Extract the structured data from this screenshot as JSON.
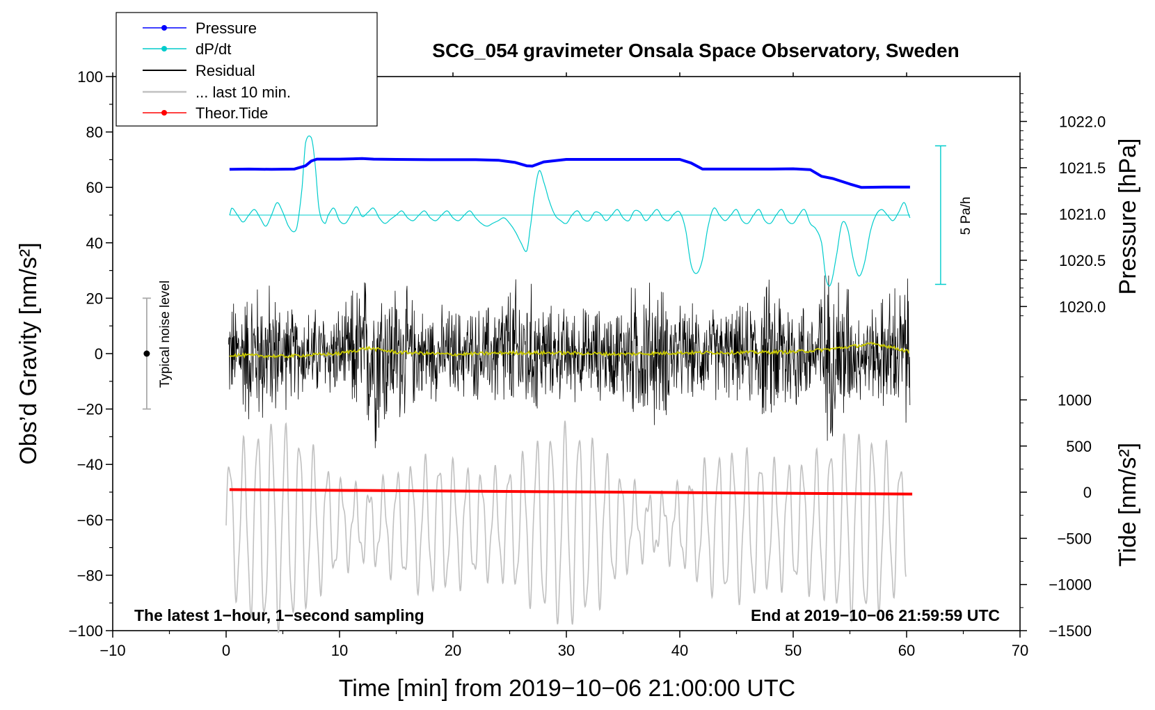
{
  "chart_data": {
    "type": "line",
    "title": "SCG_054 gravimeter Onsala Space Observatory, Sweden",
    "xlabel": "Time [min] from 2019−10−06 21:00:00 UTC",
    "ylabel_left": "Obs’d Gravity [nm/s²]",
    "ylabel_right_top": "Pressure [hPa]",
    "ylabel_right_bottom": "Tide [nm/s²]",
    "xlim": [
      -10,
      70
    ],
    "ylim": [
      -100,
      100
    ],
    "x_ticks": [
      -10,
      0,
      10,
      20,
      30,
      40,
      50,
      60,
      70
    ],
    "x_tick_labels": [
      "−10",
      "0",
      "10",
      "20",
      "30",
      "40",
      "50",
      "60",
      "70"
    ],
    "y_ticks": [
      -100,
      -80,
      -60,
      -40,
      -20,
      0,
      20,
      40,
      60,
      80,
      100
    ],
    "y_tick_labels": [
      "−100",
      "−80",
      "−60",
      "−40",
      "−20",
      "0",
      "20",
      "40",
      "60",
      "80",
      "100"
    ],
    "pressure_axis": {
      "ticks": [
        1020.0,
        1020.5,
        1021.0,
        1021.5,
        1022.0
      ],
      "tick_labels": [
        "1020.0",
        "1020.5",
        "1021.0",
        "1021.5",
        "1022.0"
      ],
      "map": {
        "value_a": 1020.0,
        "grav_a": 17,
        "value_b": 1022.0,
        "grav_b": 83.8
      }
    },
    "tide_axis": {
      "ticks": [
        -1500,
        -1000,
        -500,
        0,
        500,
        1000
      ],
      "tick_labels": [
        "−1500",
        "−1000",
        "−500",
        "0",
        "500",
        "1000"
      ],
      "map": {
        "value_a": -1500,
        "grav_a": -100,
        "value_b": 1000,
        "grav_b": -16.7
      }
    },
    "legend": {
      "position": "top-left",
      "entries": [
        {
          "label": "Pressure",
          "color": "#0000ff",
          "style": "line-dot"
        },
        {
          "label": "dP/dt",
          "color": "#00cccc",
          "style": "line-dot"
        },
        {
          "label": "Residual",
          "color": "#000000",
          "style": "line"
        },
        {
          "label": "... last 10 min.",
          "color": "#c0c0c0",
          "style": "line"
        },
        {
          "label": "Theor.Tide",
          "color": "#ff0000",
          "style": "line-dot"
        }
      ]
    },
    "annotations": {
      "noise_label": "Typical noise level",
      "noise_bar": {
        "x": -7,
        "center": 0,
        "low": -20,
        "high": 20
      },
      "rate_label": "5 Pa/h",
      "rate_bar": {
        "x": 63,
        "low": 25,
        "high": 75
      },
      "note_left": "The latest 1−hour, 1−second sampling",
      "note_right": "End at 2019−10−06 21:59:59 UTC"
    },
    "series": [
      {
        "name": "Pressure",
        "color": "#0000ff",
        "unit": "gravity-axis equivalent",
        "x": [
          0.3,
          2,
          4,
          6,
          7,
          7.5,
          8,
          10,
          12,
          13,
          15,
          18,
          20,
          22,
          24,
          25.5,
          26.5,
          27,
          28,
          30,
          32,
          35,
          38,
          40,
          41,
          42,
          45,
          48,
          50,
          51.5,
          52.5,
          53.5,
          55,
          56,
          58,
          60.3
        ],
        "values": [
          66.5,
          66.6,
          66.5,
          66.6,
          67.8,
          69.5,
          70.2,
          70.2,
          70.4,
          70.2,
          70.1,
          70.0,
          70.0,
          70.0,
          69.8,
          69.0,
          67.8,
          67.7,
          69.2,
          70.1,
          70.1,
          70.1,
          70.1,
          70.1,
          68.8,
          66.6,
          66.6,
          66.6,
          66.7,
          66.4,
          64.0,
          63.2,
          61.2,
          60.0,
          60.1,
          60.1
        ]
      },
      {
        "name": "dP/dt",
        "color": "#00cccc",
        "baseline": 50,
        "x": [
          0.3,
          0.5,
          1.0,
          1.5,
          2.0,
          2.5,
          3.0,
          3.5,
          4.0,
          4.5,
          5.0,
          5.5,
          6.0,
          6.3,
          6.7,
          7.0,
          7.5,
          7.8,
          8.2,
          8.7,
          9.0,
          9.5,
          10.0,
          10.5,
          11.0,
          11.5,
          12.0,
          12.5,
          13.0,
          13.5,
          14.0,
          14.5,
          15.0,
          15.5,
          16.0,
          16.5,
          17.0,
          17.5,
          18.0,
          18.5,
          19.0,
          19.5,
          20.0,
          20.5,
          21.0,
          21.5,
          22.0,
          22.5,
          23.0,
          23.5,
          24.0,
          24.5,
          25.0,
          25.5,
          26.0,
          26.5,
          26.8,
          27.2,
          27.6,
          28.0,
          28.5,
          29.0,
          29.5,
          30.0,
          30.5,
          31.0,
          31.5,
          32.0,
          32.5,
          33.0,
          33.5,
          34.0,
          34.5,
          35.0,
          35.5,
          36.0,
          36.5,
          37.0,
          37.5,
          38.0,
          38.5,
          39.0,
          39.5,
          40.0,
          40.5,
          41.0,
          41.5,
          42.0,
          42.5,
          43.0,
          43.5,
          44.0,
          44.5,
          45.0,
          45.5,
          46.0,
          46.5,
          47.0,
          47.5,
          48.0,
          48.5,
          49.0,
          49.5,
          50.0,
          50.5,
          51.0,
          51.5,
          52.0,
          52.5,
          52.9,
          53.3,
          53.8,
          54.3,
          54.8,
          55.3,
          55.8,
          56.3,
          56.8,
          57.3,
          57.8,
          58.3,
          58.8,
          59.3,
          59.8,
          60.3
        ],
        "values": [
          50,
          52.5,
          50,
          47.5,
          50,
          52,
          49,
          46,
          50,
          54.5,
          51,
          46,
          44,
          47,
          60,
          76,
          78,
          70,
          52,
          47,
          50,
          52.5,
          48,
          47,
          50,
          53,
          49.5,
          51,
          52.5,
          49,
          47,
          48.5,
          50,
          51.5,
          49,
          48,
          50,
          51.5,
          49,
          48,
          50,
          51.5,
          49,
          48,
          50,
          51.5,
          49,
          47,
          46,
          47,
          48,
          49,
          47,
          44,
          40,
          37,
          45,
          58,
          66,
          62,
          55,
          50,
          48,
          47,
          50,
          51.5,
          48.5,
          48,
          51,
          50.5,
          48,
          50,
          52,
          49,
          48,
          51.5,
          51,
          48,
          50,
          52,
          49,
          48,
          50.5,
          51,
          45,
          32,
          29,
          34,
          46,
          52.5,
          50,
          48,
          50,
          52,
          48,
          47,
          50,
          52,
          48,
          47,
          50,
          52,
          48,
          47,
          50,
          52,
          47,
          45,
          40,
          27,
          25,
          35,
          47,
          45,
          34,
          28,
          33,
          44,
          50,
          52,
          50,
          48,
          51,
          54.5,
          49
        ]
      },
      {
        "name": "Residual",
        "color": "#000000",
        "x_range": [
          0.2,
          60.3
        ],
        "mean": 0,
        "spread": "approx. ±20 nm/s² with spikes to ±40"
      },
      {
        "name": "Residual (smoothed)",
        "color": "#c8c800",
        "x": [
          0.3,
          5,
          10,
          12.5,
          15,
          20,
          25,
          30,
          35,
          40,
          45,
          50,
          53,
          55,
          57,
          58,
          60,
          60.3
        ],
        "values": [
          -0.5,
          -1.0,
          0.0,
          2.0,
          0.5,
          -0.3,
          0.3,
          0.2,
          -0.2,
          0.3,
          0.4,
          0.6,
          1.5,
          2.5,
          3.5,
          3.0,
          1.0,
          0.0
        ]
      },
      {
        "name": "... last 10 min.",
        "color": "#c0c0c0",
        "x_range": [
          0,
          60
        ],
        "center": -62,
        "amplitude_range": [
          8,
          35
        ]
      },
      {
        "name": "Theor.Tide",
        "color": "#ff0000",
        "x": [
          0.3,
          60.5
        ],
        "values": [
          -49.1,
          -50.7
        ]
      }
    ]
  }
}
